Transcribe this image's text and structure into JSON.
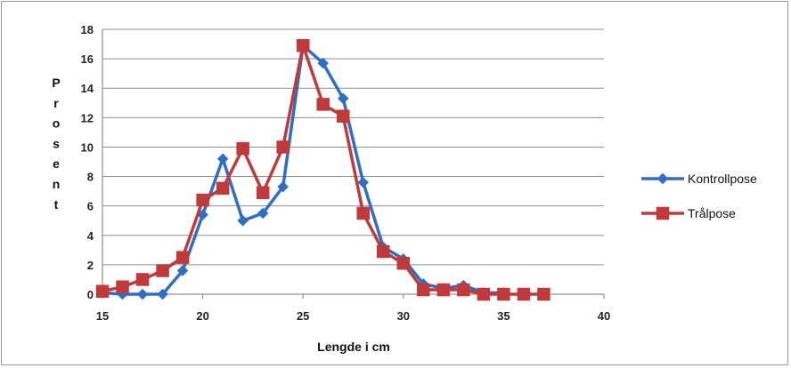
{
  "chart_data": {
    "type": "line",
    "xlabel": "Lengde i cm",
    "ylabel": "Prosent",
    "xlim": [
      15,
      40
    ],
    "ylim": [
      0,
      18
    ],
    "xticks": [
      15,
      20,
      25,
      30,
      35,
      40
    ],
    "yticks": [
      0,
      2,
      4,
      6,
      8,
      10,
      12,
      14,
      16,
      18
    ],
    "grid": "horizontal",
    "legend_position": "right",
    "series": [
      {
        "name": "Kontrollpose",
        "color": "#2e6fc4",
        "marker": "diamond",
        "x": [
          15,
          16,
          17,
          18,
          19,
          20,
          21,
          22,
          23,
          24,
          25,
          26,
          27,
          28,
          29,
          30,
          31,
          32,
          33,
          34,
          35
        ],
        "y": [
          0.1,
          0.0,
          0.0,
          0.0,
          1.6,
          5.4,
          9.2,
          5.0,
          5.5,
          7.3,
          16.9,
          15.7,
          13.3,
          7.6,
          3.2,
          2.4,
          0.7,
          0.4,
          0.6,
          0.1,
          0.1
        ]
      },
      {
        "name": "Trålpose",
        "color": "#c0393b",
        "marker": "square",
        "x": [
          15,
          16,
          17,
          18,
          19,
          20,
          21,
          22,
          23,
          24,
          25,
          26,
          27,
          28,
          29,
          30,
          31,
          32,
          33,
          34,
          35,
          36,
          37
        ],
        "y": [
          0.2,
          0.5,
          1.0,
          1.6,
          2.5,
          6.4,
          7.2,
          9.9,
          6.9,
          10.0,
          16.9,
          12.9,
          12.1,
          5.5,
          2.9,
          2.1,
          0.3,
          0.3,
          0.3,
          0.0,
          0.0,
          0.0,
          0.0
        ]
      }
    ]
  }
}
